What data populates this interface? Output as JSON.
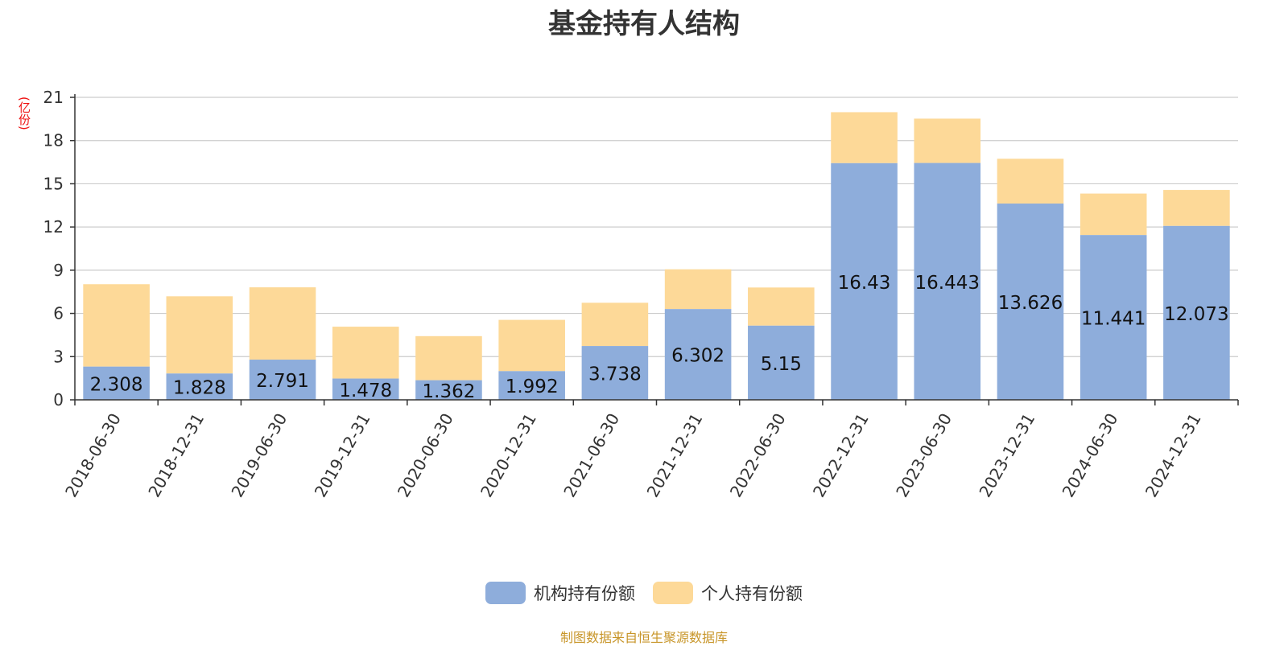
{
  "chart_data": {
    "type": "bar",
    "stacked": true,
    "title": "基金持有人结构",
    "ylabel": "(亿份)",
    "xlabel": "",
    "ylim": [
      0,
      21
    ],
    "yticks": [
      0,
      3,
      6,
      9,
      12,
      15,
      18,
      21
    ],
    "grid": true,
    "legend_position": "bottom-center",
    "categories": [
      "2018-06-30",
      "2018-12-31",
      "2019-06-30",
      "2019-12-31",
      "2020-06-30",
      "2020-12-31",
      "2021-06-30",
      "2021-12-31",
      "2022-06-30",
      "2022-12-31",
      "2023-06-30",
      "2023-12-31",
      "2024-06-30",
      "2024-12-31"
    ],
    "series": [
      {
        "name": "机构持有份额",
        "color": "#8eaddb",
        "values": [
          2.308,
          1.828,
          2.791,
          1.478,
          1.362,
          1.992,
          3.738,
          6.302,
          5.15,
          16.43,
          16.443,
          13.626,
          11.441,
          12.073
        ],
        "labels": [
          "2.308",
          "1.828",
          "2.791",
          "1.478",
          "1.362",
          "1.992",
          "3.738",
          "6.302",
          "5.15",
          "16.43",
          "16.443",
          "13.626",
          "11.441",
          "12.073"
        ]
      },
      {
        "name": "个人持有份额",
        "color": "#fdd998",
        "values": [
          5.72,
          5.36,
          5.02,
          3.6,
          3.06,
          3.56,
          3.0,
          2.76,
          2.65,
          3.54,
          3.08,
          3.11,
          2.88,
          2.5
        ]
      }
    ]
  },
  "legend": {
    "item1": {
      "label": "机构持有份额",
      "color": "#8eaddb"
    },
    "item2": {
      "label": "个人持有份额",
      "color": "#fdd998"
    }
  },
  "footer": {
    "source": "制图数据来自恒生聚源数据库"
  }
}
